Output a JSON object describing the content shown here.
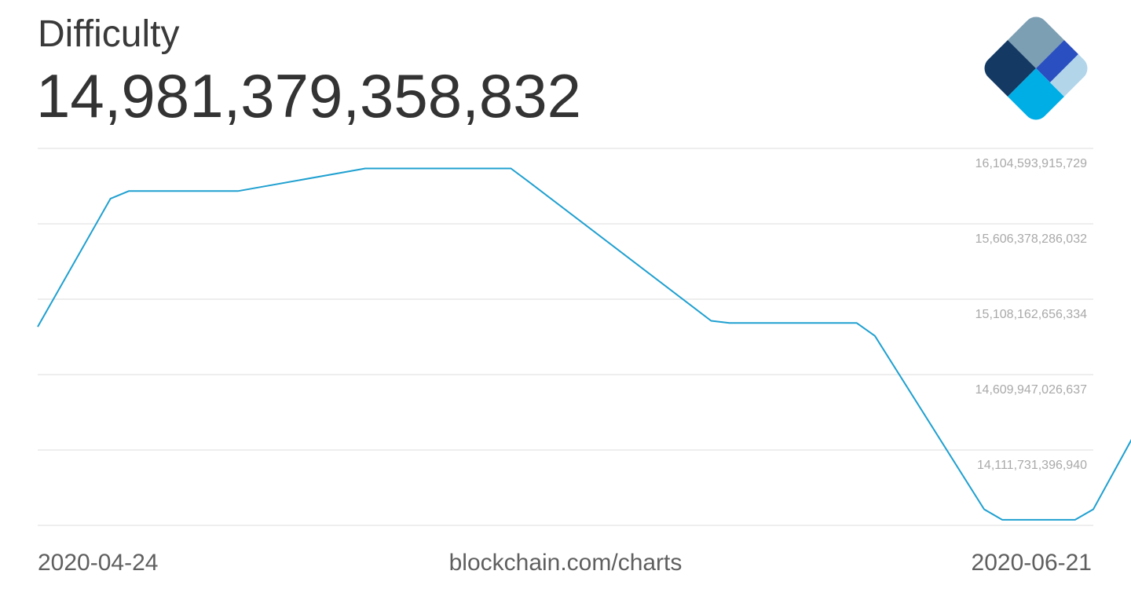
{
  "header": {
    "title": "Difficulty",
    "current_value": "14,981,379,358,832"
  },
  "footer": {
    "start_date": "2020-04-24",
    "source": "blockchain.com/charts",
    "end_date": "2020-06-21"
  },
  "colors": {
    "line": "#1fa0d0",
    "grid": "#dddddd",
    "tick_text": "#a9a9a9",
    "logo": [
      "#7c9fb3",
      "#143a64",
      "#2a4fc0",
      "#00aee6",
      "#b2d5ea"
    ]
  },
  "chart_data": {
    "type": "line",
    "title": "Difficulty",
    "xlim": [
      "2020-04-24",
      "2020-06-21"
    ],
    "y_ticks": [
      16104593915729,
      15606378286032,
      15108162656334,
      14609947026637,
      14111731396940
    ],
    "y_tick_labels": [
      "16,104,593,915,729",
      "15,606,378,286,032",
      "15,108,162,656,334",
      "14,609,947,026,637",
      "14,111,731,396,940"
    ],
    "ylim": [
      13863000000000,
      16363000000000
    ],
    "grid": true,
    "series": [
      {
        "x": [
          "2020-04-24",
          "2020-04-28",
          "2020-04-29",
          "2020-05-05",
          "2020-05-12",
          "2020-05-13",
          "2020-05-20",
          "2020-05-21",
          "2020-05-31",
          "2020-06-01",
          "2020-06-08",
          "2020-06-09",
          "2020-06-15",
          "2020-06-16",
          "2020-06-20",
          "2020-06-21",
          "2020-06-25"
        ],
        "values": [
          15180000000000,
          16030000000000,
          16080000000000,
          16080000000000,
          16230000000000,
          16230000000000,
          16230000000000,
          16140000000000,
          15220000000000,
          15205000000000,
          15205000000000,
          15120000000000,
          13970000000000,
          13900000000000,
          13900000000000,
          13970000000000,
          14850000000000
        ]
      }
    ]
  }
}
